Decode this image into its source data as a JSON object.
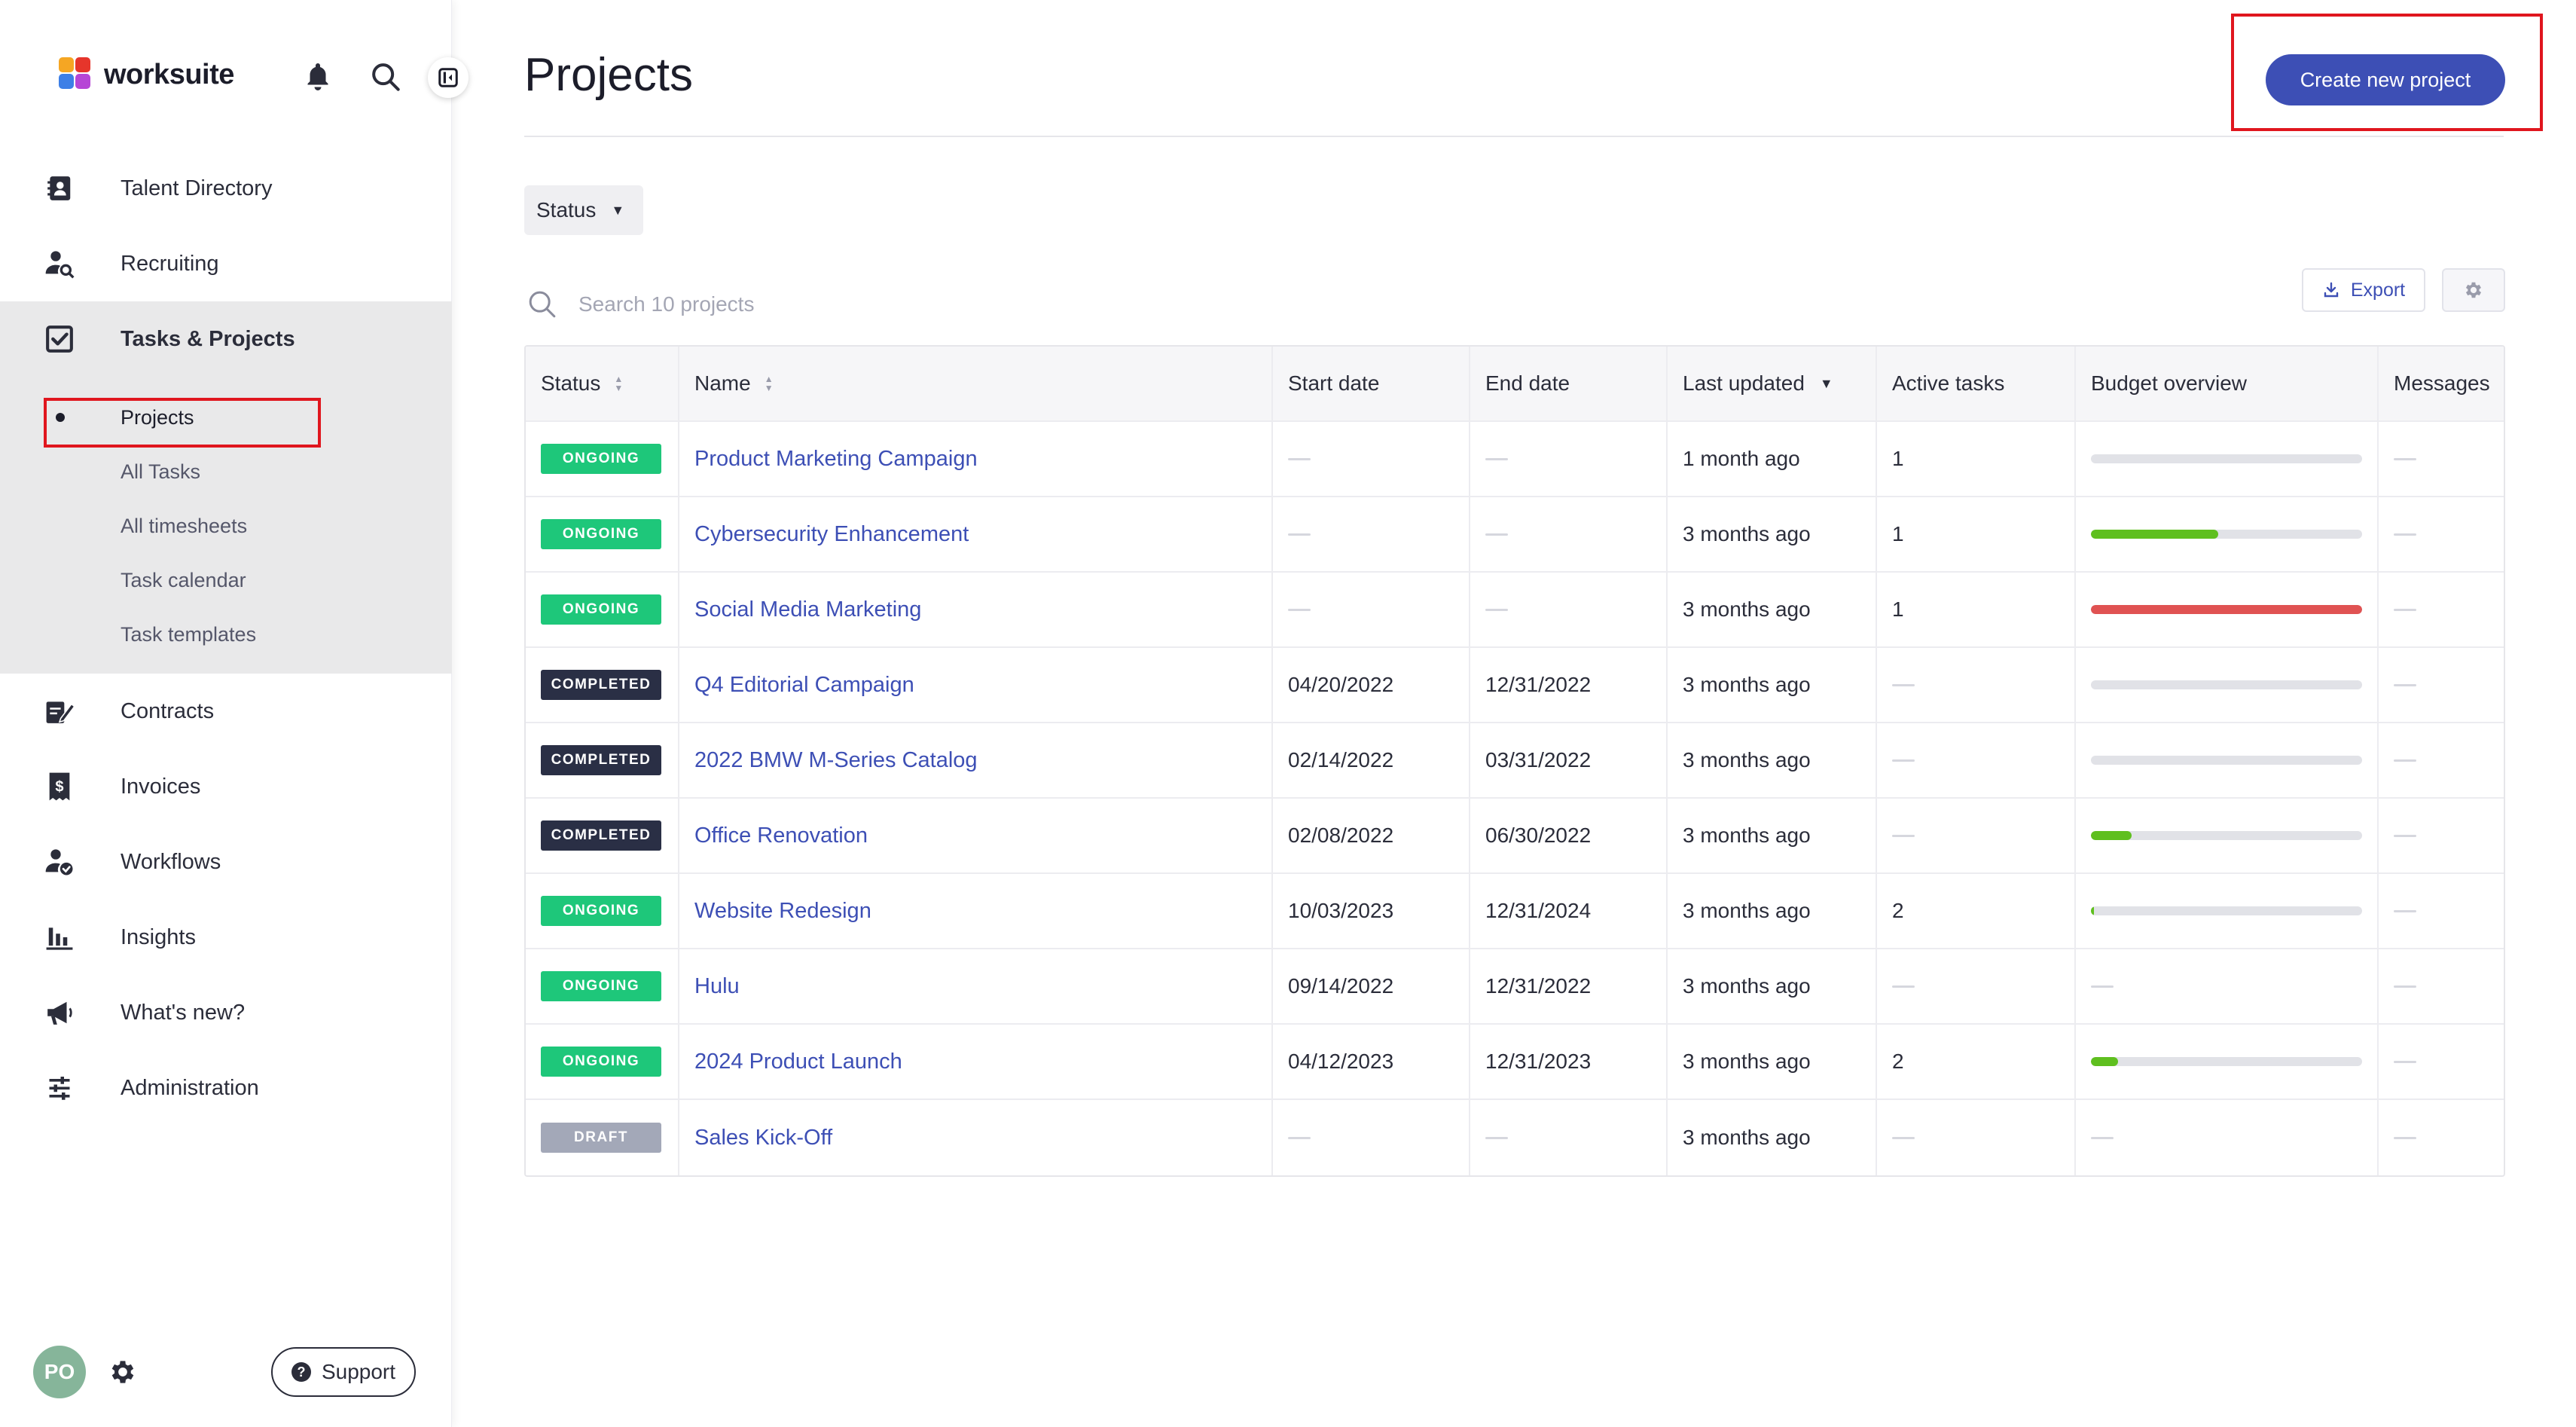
{
  "app": {
    "logo_text": "worksuite",
    "brand_colors": [
      "#f5a623",
      "#e6352b",
      "#3d7fe6",
      "#b646d6",
      "#1ec77a"
    ]
  },
  "sidebar": {
    "items": [
      {
        "label": "Talent Directory",
        "icon": "contact-book-icon"
      },
      {
        "label": "Recruiting",
        "icon": "person-search-icon"
      },
      {
        "label": "Tasks & Projects",
        "icon": "checkbox-icon",
        "expanded": true,
        "sub_items": [
          {
            "label": "Projects",
            "active": true
          },
          {
            "label": "All Tasks"
          },
          {
            "label": "All timesheets"
          },
          {
            "label": "Task calendar"
          },
          {
            "label": "Task templates"
          }
        ]
      },
      {
        "label": "Contracts",
        "icon": "contract-sign-icon"
      },
      {
        "label": "Invoices",
        "icon": "invoice-dollar-icon"
      },
      {
        "label": "Workflows",
        "icon": "person-check-icon"
      },
      {
        "label": "Insights",
        "icon": "bar-chart-icon"
      },
      {
        "label": "What's new?",
        "icon": "megaphone-icon"
      },
      {
        "label": "Administration",
        "icon": "sliders-icon"
      }
    ],
    "avatar_initials": "PO",
    "support_label": "Support"
  },
  "main": {
    "title": "Projects",
    "create_button": "Create new project",
    "status_filter": "Status",
    "search_placeholder": "Search 10 projects",
    "export_label": "Export",
    "columns": [
      "Status",
      "Name",
      "Start date",
      "End date",
      "Last updated",
      "Active tasks",
      "Budget overview",
      "Messages"
    ],
    "rows": [
      {
        "status": "ONGOING",
        "status_type": "ongoing",
        "name": "Product Marketing Campaign",
        "start": "",
        "end": "",
        "updated": "1 month ago",
        "tasks": "1",
        "budget": 0,
        "budget_color": "",
        "has_budget": true
      },
      {
        "status": "ONGOING",
        "status_type": "ongoing",
        "name": "Cybersecurity Enhancement",
        "start": "",
        "end": "",
        "updated": "3 months ago",
        "tasks": "1",
        "budget": 0.47,
        "budget_color": "#5fbf1f",
        "has_budget": true
      },
      {
        "status": "ONGOING",
        "status_type": "ongoing",
        "name": "Social Media Marketing",
        "start": "",
        "end": "",
        "updated": "3 months ago",
        "tasks": "1",
        "budget": 1.0,
        "budget_color": "#e05252",
        "has_budget": true
      },
      {
        "status": "COMPLETED",
        "status_type": "completed",
        "name": "Q4 Editorial Campaign",
        "start": "04/20/2022",
        "end": "12/31/2022",
        "updated": "3 months ago",
        "tasks": "",
        "budget": 0,
        "budget_color": "",
        "has_budget": true
      },
      {
        "status": "COMPLETED",
        "status_type": "completed",
        "name": "2022 BMW M-Series Catalog",
        "start": "02/14/2022",
        "end": "03/31/2022",
        "updated": "3 months ago",
        "tasks": "",
        "budget": 0,
        "budget_color": "",
        "has_budget": true
      },
      {
        "status": "COMPLETED",
        "status_type": "completed",
        "name": "Office Renovation",
        "start": "02/08/2022",
        "end": "06/30/2022",
        "updated": "3 months ago",
        "tasks": "",
        "budget": 0.15,
        "budget_color": "#5fbf1f",
        "has_budget": true
      },
      {
        "status": "ONGOING",
        "status_type": "ongoing",
        "name": "Website Redesign",
        "start": "10/03/2023",
        "end": "12/31/2024",
        "updated": "3 months ago",
        "tasks": "2",
        "budget": 0.01,
        "budget_color": "#5fbf1f",
        "has_budget": true
      },
      {
        "status": "ONGOING",
        "status_type": "ongoing",
        "name": "Hulu",
        "start": "09/14/2022",
        "end": "12/31/2022",
        "updated": "3 months ago",
        "tasks": "",
        "budget": 0,
        "budget_color": "",
        "has_budget": false
      },
      {
        "status": "ONGOING",
        "status_type": "ongoing",
        "name": "2024 Product Launch",
        "start": "04/12/2023",
        "end": "12/31/2023",
        "updated": "3 months ago",
        "tasks": "2",
        "budget": 0.1,
        "budget_color": "#5fbf1f",
        "has_budget": true
      },
      {
        "status": "DRAFT",
        "status_type": "draft",
        "name": "Sales Kick-Off",
        "start": "",
        "end": "",
        "updated": "3 months ago",
        "tasks": "",
        "budget": 0,
        "budget_color": "",
        "has_budget": false
      }
    ]
  }
}
